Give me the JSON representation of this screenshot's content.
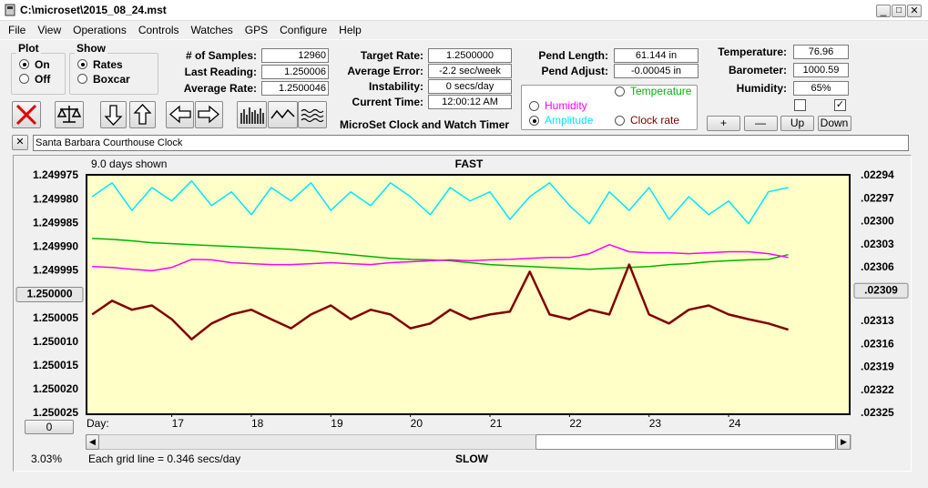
{
  "window": {
    "title": "C:\\microset\\2015_08_24.mst"
  },
  "menu": [
    "File",
    "View",
    "Operations",
    "Controls",
    "Watches",
    "GPS",
    "Configure",
    "Help"
  ],
  "plot_group": {
    "title": "Plot",
    "options": [
      {
        "label": "On",
        "checked": true
      },
      {
        "label": "Off",
        "checked": false
      }
    ]
  },
  "show_group": {
    "title": "Show",
    "options": [
      {
        "label": "Rates",
        "checked": true
      },
      {
        "label": "Boxcar",
        "checked": false
      }
    ]
  },
  "stats": [
    {
      "label": "# of Samples:",
      "value": "12960"
    },
    {
      "label": "Last Reading:",
      "value": "1.250006"
    },
    {
      "label": "Average Rate:",
      "value": "1.2500046"
    }
  ],
  "timing": [
    {
      "label": "Target Rate:",
      "value": "1.2500000"
    },
    {
      "label": "Average Error:",
      "value": "-2.2 sec/week"
    },
    {
      "label": "Instability:",
      "value": "0 secs/day"
    },
    {
      "label": "Current Time:",
      "value": "12:00:12 AM"
    }
  ],
  "pendulum": [
    {
      "label": "Pend Length:",
      "value": "61.144 in"
    },
    {
      "label": "Pend Adjust:",
      "value": "-0.00045 in"
    }
  ],
  "environment": [
    {
      "label": "Temperature:",
      "value": "76.96"
    },
    {
      "label": "Barometer:",
      "value": "1000.59"
    },
    {
      "label": "Humidity:",
      "value": "65%"
    }
  ],
  "checkboxes": [
    false,
    true
  ],
  "adjust_buttons": [
    "+",
    "—",
    "Up",
    "Down"
  ],
  "app_name": "MicroSet Clock and Watch Timer",
  "clock_name": "Santa Barbara Courthouse Clock",
  "chart_data": {
    "type": "line",
    "title": "FAST",
    "footer": "SLOW",
    "days_shown": "9.0 days shown",
    "x_label": "Day:",
    "grid_note": "Each grid line = 0.346 secs/day",
    "percent": "3.03%",
    "offset_button": "0",
    "grid": false,
    "xlim": [
      15.94,
      25.51
    ],
    "xticks": [
      17,
      18,
      19,
      20,
      21,
      22,
      23,
      24
    ],
    "ylim": [
      1.250025,
      1.249975
    ],
    "yticks": [
      {
        "value": 1.249975,
        "label": "1.249975"
      },
      {
        "value": 1.24998,
        "label": "1.249980"
      },
      {
        "value": 1.249985,
        "label": "1.249985"
      },
      {
        "value": 1.24999,
        "label": "1.249990"
      },
      {
        "value": 1.249995,
        "label": "1.249995"
      },
      {
        "value": 1.250005,
        "label": "1.250005"
      },
      {
        "value": 1.25001,
        "label": "1.250010"
      },
      {
        "value": 1.250015,
        "label": "1.250015"
      },
      {
        "value": 1.25002,
        "label": "1.250020"
      },
      {
        "value": 1.250025,
        "label": "1.250025"
      }
    ],
    "yref": {
      "value": 1.25,
      "label": "1.250000"
    },
    "y2lim": [
      0.02325,
      0.02294
    ],
    "y2ticks": [
      {
        "value": 0.02294,
        "label": ".02294"
      },
      {
        "value": 0.02297,
        "label": ".02297"
      },
      {
        "value": 0.023,
        "label": ".02300"
      },
      {
        "value": 0.02303,
        "label": ".02303"
      },
      {
        "value": 0.02306,
        "label": ".02306"
      },
      {
        "value": 0.02313,
        "label": ".02313"
      },
      {
        "value": 0.02316,
        "label": ".02316"
      },
      {
        "value": 0.02319,
        "label": ".02319"
      },
      {
        "value": 0.02322,
        "label": ".02322"
      },
      {
        "value": 0.02325,
        "label": ".02325"
      }
    ],
    "y2ref": {
      "value": 0.02309,
      "label": ".02309"
    },
    "x": [
      16,
      16.25,
      16.5,
      16.75,
      17,
      17.25,
      17.5,
      17.75,
      18,
      18.25,
      18.5,
      18.75,
      19,
      19.25,
      19.5,
      19.75,
      20,
      20.25,
      20.5,
      20.75,
      21,
      21.25,
      21.5,
      21.75,
      22,
      22.25,
      22.5,
      22.75,
      23,
      23.25,
      23.5,
      23.75,
      24,
      24.25,
      24.5,
      24.75
    ],
    "series": [
      {
        "name": "Temperature",
        "color": "#00b400",
        "selected": false,
        "values": [
          1.2499882,
          1.2499884,
          1.2499887,
          1.2499891,
          1.2499893,
          1.2499895,
          1.2499897,
          1.2499899,
          1.2499901,
          1.2499903,
          1.2499905,
          1.2499908,
          1.2499912,
          1.2499916,
          1.249992,
          1.2499924,
          1.2499926,
          1.2499927,
          1.2499929,
          1.2499933,
          1.2499937,
          1.2499939,
          1.2499941,
          1.2499943,
          1.2499945,
          1.2499947,
          1.2499945,
          1.2499943,
          1.2499941,
          1.2499937,
          1.2499935,
          1.2499931,
          1.2499929,
          1.2499927,
          1.2499926,
          1.2499916
        ]
      },
      {
        "name": "Humidity",
        "color": "#ff00ff",
        "selected": false,
        "values": [
          1.2499941,
          1.2499943,
          1.2499947,
          1.249995,
          1.2499943,
          1.2499926,
          1.2499927,
          1.2499933,
          1.2499935,
          1.2499937,
          1.2499937,
          1.2499935,
          1.2499933,
          1.2499935,
          1.2499937,
          1.2499933,
          1.2499931,
          1.2499929,
          1.2499927,
          1.2499929,
          1.2499927,
          1.2499926,
          1.2499924,
          1.2499922,
          1.2499922,
          1.2499914,
          1.2499895,
          1.249991,
          1.2499912,
          1.2499912,
          1.2499914,
          1.2499912,
          1.249991,
          1.249991,
          1.2499914,
          1.2499922
        ]
      },
      {
        "name": "Amplitude",
        "color": "#00e6ff",
        "selected": true,
        "values": [
          1.2499794,
          1.2499765,
          1.2499823,
          1.2499775,
          1.2499803,
          1.2499761,
          1.2499813,
          1.2499784,
          1.2499832,
          1.2499775,
          1.2499803,
          1.2499765,
          1.2499823,
          1.2499784,
          1.2499813,
          1.2499765,
          1.2499794,
          1.2499832,
          1.2499775,
          1.2499803,
          1.2499784,
          1.2499842,
          1.2499794,
          1.2499765,
          1.2499813,
          1.2499851,
          1.2499784,
          1.2499823,
          1.2499775,
          1.2499842,
          1.2499794,
          1.2499832,
          1.2499803,
          1.2499851,
          1.2499784,
          1.2499775
        ]
      },
      {
        "name": "Clock rate",
        "color": "#800000",
        "selected": false,
        "values": [
          1.2500042,
          1.2500013,
          1.2500032,
          1.2500023,
          1.2500052,
          1.2500094,
          1.2500061,
          1.2500042,
          1.2500032,
          1.2500052,
          1.2500071,
          1.2500042,
          1.2500023,
          1.2500052,
          1.2500032,
          1.2500042,
          1.2500071,
          1.2500061,
          1.2500032,
          1.2500052,
          1.2500042,
          1.2500036,
          1.2499952,
          1.2500042,
          1.2500052,
          1.2500032,
          1.2500042,
          1.2499937,
          1.2500042,
          1.2500061,
          1.2500032,
          1.2500023,
          1.2500042,
          1.2500052,
          1.2500061,
          1.2500074
        ]
      }
    ]
  }
}
